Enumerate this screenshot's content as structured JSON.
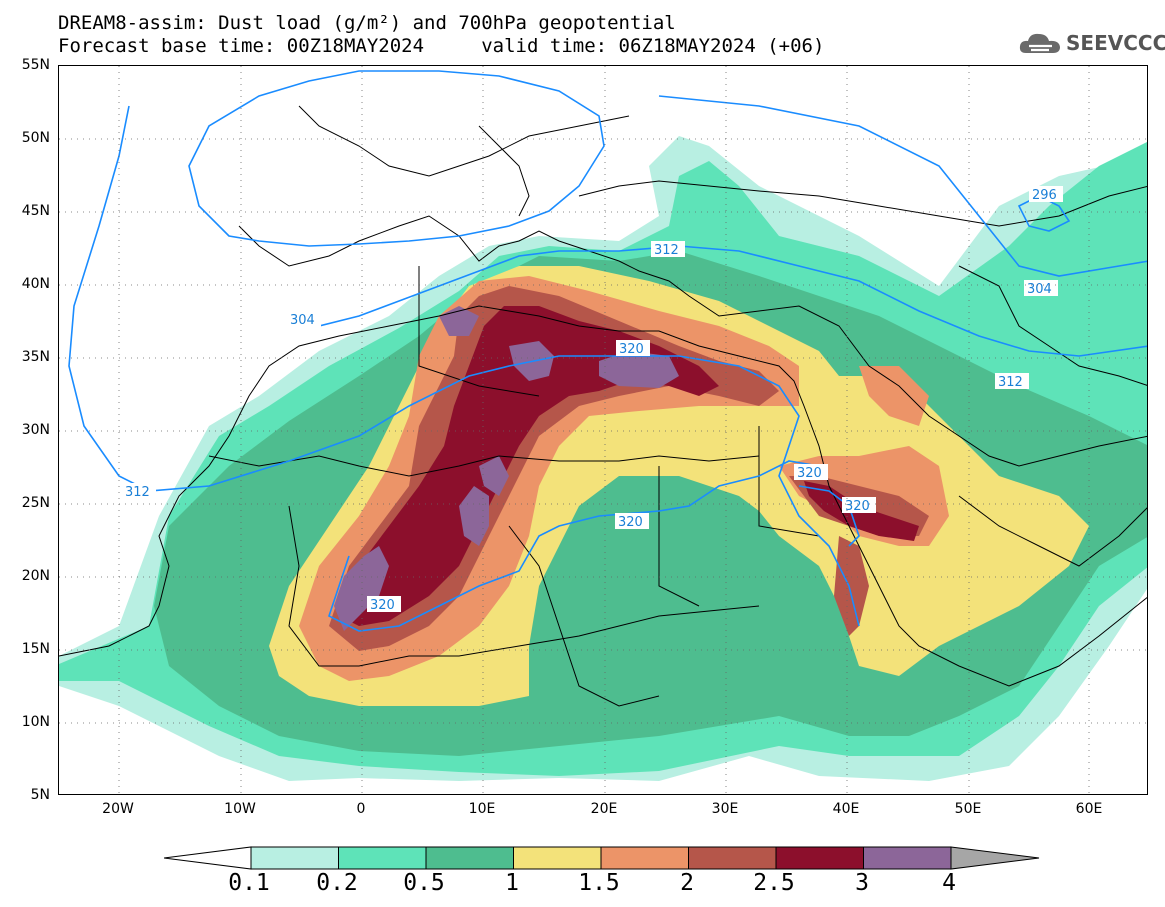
{
  "title": {
    "line1": "DREAM8-assim: Dust load (g/m²) and 700hPa geopotential",
    "line2": "Forecast base time: 00Z18MAY2024     valid time: 06Z18MAY2024 (+06)"
  },
  "logo": {
    "text": "SEEVCCC",
    "icon": "cloud-icon"
  },
  "map": {
    "lat_labels": [
      "55N",
      "50N",
      "45N",
      "40N",
      "35N",
      "30N",
      "25N",
      "20N",
      "15N",
      "10N",
      "5N"
    ],
    "lon_labels": [
      "20W",
      "10W",
      "0",
      "10E",
      "20E",
      "30E",
      "40E",
      "50E",
      "60E"
    ],
    "contour_labels": [
      "296",
      "304",
      "304",
      "312",
      "312",
      "312",
      "320",
      "320",
      "320",
      "320",
      "320"
    ]
  },
  "colorbar": {
    "levels": [
      "0.1",
      "0.2",
      "0.5",
      "1",
      "1.5",
      "2",
      "2.5",
      "3",
      "4"
    ],
    "colors": [
      "#ffffff",
      "#b8efe2",
      "#5ee3b8",
      "#4ebd8f",
      "#f3e27a",
      "#ec9468",
      "#b5564a",
      "#8c0f2c",
      "#8c6699",
      "#a6a6a6"
    ]
  }
}
